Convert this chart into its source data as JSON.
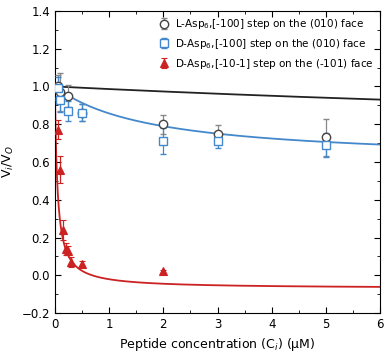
{
  "title": "",
  "xlabel": "Peptide concentration (C$_i$) (μM)",
  "ylabel": "V$_i$/V$_O$",
  "xlim": [
    0,
    6
  ],
  "ylim": [
    -0.2,
    1.4
  ],
  "xticks": [
    0,
    1,
    2,
    3,
    4,
    5,
    6
  ],
  "yticks": [
    -0.2,
    0.0,
    0.2,
    0.4,
    0.6,
    0.8,
    1.0,
    1.2,
    1.4
  ],
  "L_Asp6_x": [
    0.05,
    0.1,
    0.25,
    0.5,
    2.0,
    3.0,
    5.0
  ],
  "L_Asp6_y": [
    1.0,
    0.97,
    0.95,
    0.86,
    0.8,
    0.75,
    0.73
  ],
  "L_Asp6_yerr": [
    0.06,
    0.1,
    0.06,
    0.045,
    0.05,
    0.045,
    0.1
  ],
  "D_Asp6_010_x": [
    0.05,
    0.1,
    0.25,
    0.5,
    2.0,
    3.0,
    5.0
  ],
  "D_Asp6_010_y": [
    0.99,
    0.93,
    0.87,
    0.86,
    0.71,
    0.71,
    0.69
  ],
  "D_Asp6_010_yerr": [
    0.06,
    0.065,
    0.055,
    0.045,
    0.07,
    0.035,
    0.065
  ],
  "D_Asp6_101_x": [
    0.05,
    0.1,
    0.15,
    0.2,
    0.25,
    0.3,
    0.5,
    2.0
  ],
  "D_Asp6_101_y": [
    0.77,
    0.56,
    0.24,
    0.14,
    0.13,
    0.07,
    0.06,
    0.02
  ],
  "D_Asp6_101_yerr": [
    0.05,
    0.07,
    0.055,
    0.03,
    0.025,
    0.025,
    0.015,
    0.01
  ],
  "line_color_black": "#222222",
  "line_color_blue": "#4488cc",
  "line_color_red": "#cc2222",
  "legend_labels": [
    "L-Asp$_6$,[-100] step on the (010) face",
    "D-Asp$_6$,[-100] step on the (010) face",
    "D-Asp$_6$,[-10-1] step on the (-101) face"
  ],
  "fit_black_params": {
    "Kd": 25.0,
    "Vinf": 0.64
  },
  "fit_blue_params": {
    "Kd": 1.8,
    "Vinf": 0.6
  },
  "fit_red_params": {
    "Kd": 0.048,
    "Vinf": -0.07
  }
}
